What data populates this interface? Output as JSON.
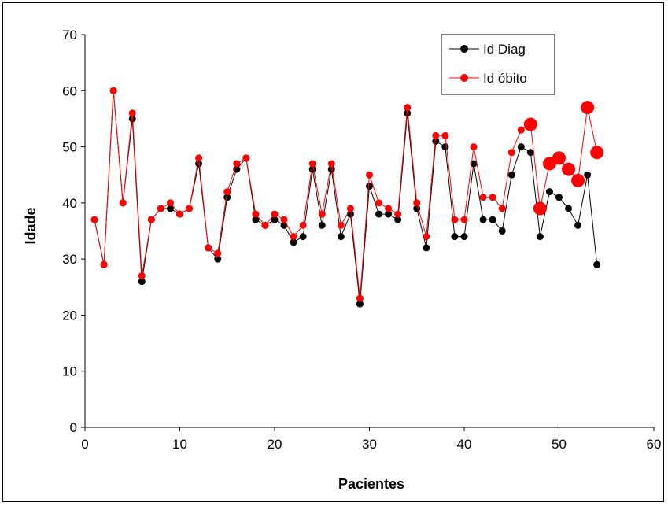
{
  "chart_data": {
    "type": "line",
    "xlabel": "Pacientes",
    "ylabel": "Idade",
    "xlim": [
      0,
      60
    ],
    "ylim": [
      0,
      70
    ],
    "x_ticks": [
      0,
      10,
      20,
      30,
      40,
      50,
      60
    ],
    "y_ticks": [
      0,
      10,
      20,
      30,
      40,
      50,
      60,
      70
    ],
    "grid": false,
    "legend_position": "top-right",
    "series": [
      {
        "name": "Id Diag",
        "color": "#000000",
        "x": [
          1,
          2,
          3,
          4,
          5,
          6,
          7,
          8,
          9,
          10,
          11,
          12,
          13,
          14,
          15,
          16,
          17,
          18,
          19,
          20,
          21,
          22,
          23,
          24,
          25,
          26,
          27,
          28,
          29,
          30,
          31,
          32,
          33,
          34,
          35,
          36,
          37,
          38,
          39,
          40,
          41,
          42,
          43,
          44,
          45,
          46,
          47,
          48,
          49,
          50,
          51,
          52,
          53,
          54
        ],
        "values": [
          37,
          29,
          60,
          40,
          55,
          26,
          37,
          39,
          39,
          38,
          39,
          47,
          32,
          30,
          41,
          46,
          48,
          37,
          36,
          37,
          36,
          33,
          34,
          46,
          36,
          46,
          34,
          38,
          22,
          43,
          38,
          38,
          37,
          56,
          39,
          32,
          51,
          50,
          34,
          34,
          47,
          37,
          37,
          35,
          45,
          50,
          49,
          34,
          42,
          41,
          39,
          36,
          45,
          29
        ]
      },
      {
        "name": "Id óbito",
        "color": "#ff0000",
        "x": [
          1,
          2,
          3,
          4,
          5,
          6,
          7,
          8,
          9,
          10,
          11,
          12,
          13,
          14,
          15,
          16,
          17,
          18,
          19,
          20,
          21,
          22,
          23,
          24,
          25,
          26,
          27,
          28,
          29,
          30,
          31,
          32,
          33,
          34,
          35,
          36,
          37,
          38,
          39,
          40,
          41,
          42,
          43,
          44,
          45,
          46,
          47,
          48,
          49,
          50,
          51,
          52,
          53,
          54
        ],
        "values": [
          37,
          29,
          60,
          40,
          56,
          27,
          37,
          39,
          40,
          38,
          39,
          48,
          32,
          31,
          42,
          47,
          48,
          38,
          36,
          38,
          37,
          34,
          36,
          47,
          38,
          47,
          36,
          39,
          23,
          45,
          40,
          39,
          38,
          57,
          40,
          34,
          52,
          52,
          37,
          37,
          50,
          41,
          41,
          39,
          49,
          53,
          54,
          39,
          47,
          48,
          46,
          44,
          57,
          49
        ],
        "emphasized_points": [
          47,
          48,
          49,
          50,
          51,
          52,
          53,
          54
        ]
      }
    ]
  }
}
